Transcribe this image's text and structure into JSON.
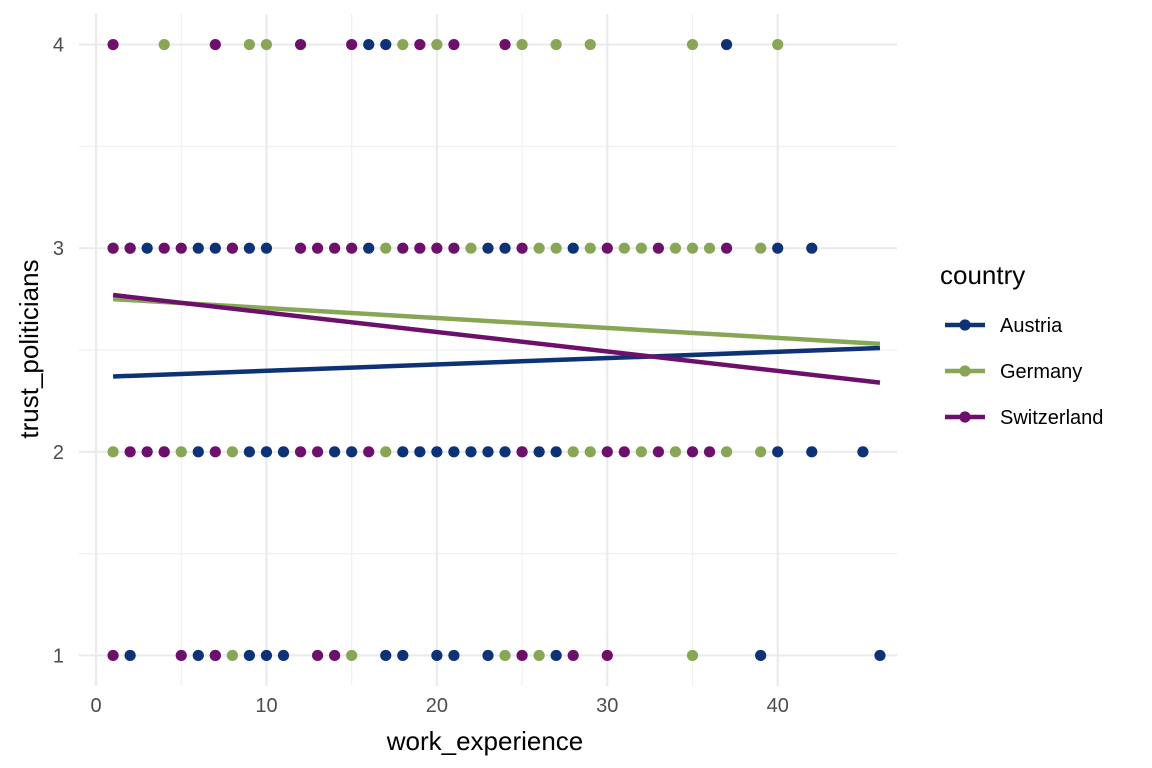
{
  "chart_data": {
    "type": "scatter",
    "xlabel": "work_experience",
    "ylabel": "trust_politicians",
    "xlim": [
      -1,
      47
    ],
    "ylim": [
      0.85,
      4.15
    ],
    "xticks": [
      0,
      10,
      20,
      30,
      40
    ],
    "yticks": [
      1,
      2,
      3,
      4
    ],
    "grid": true,
    "legend": {
      "title": "country",
      "position": "right"
    },
    "series": [
      {
        "name": "Austria",
        "color": "#0d3275",
        "points": [
          [
            16,
            4
          ],
          [
            17,
            4
          ],
          [
            37,
            4
          ],
          [
            2,
            3
          ],
          [
            3,
            3
          ],
          [
            6,
            3
          ],
          [
            7,
            3
          ],
          [
            9,
            3
          ],
          [
            10,
            3
          ],
          [
            16,
            3
          ],
          [
            23,
            3
          ],
          [
            24,
            3
          ],
          [
            28,
            3
          ],
          [
            40,
            3
          ],
          [
            42,
            3
          ],
          [
            6,
            2
          ],
          [
            9,
            2
          ],
          [
            10,
            2
          ],
          [
            11,
            2
          ],
          [
            14,
            2
          ],
          [
            15,
            2
          ],
          [
            18,
            2
          ],
          [
            19,
            2
          ],
          [
            20,
            2
          ],
          [
            21,
            2
          ],
          [
            22,
            2
          ],
          [
            23,
            2
          ],
          [
            24,
            2
          ],
          [
            26,
            2
          ],
          [
            27,
            2
          ],
          [
            40,
            2
          ],
          [
            42,
            2
          ],
          [
            45,
            2
          ],
          [
            2,
            1
          ],
          [
            6,
            1
          ],
          [
            7,
            1
          ],
          [
            9,
            1
          ],
          [
            10,
            1
          ],
          [
            11,
            1
          ],
          [
            17,
            1
          ],
          [
            18,
            1
          ],
          [
            20,
            1
          ],
          [
            21,
            1
          ],
          [
            23,
            1
          ],
          [
            27,
            1
          ],
          [
            39,
            1
          ],
          [
            46,
            1
          ]
        ],
        "trend": [
          [
            1,
            2.37
          ],
          [
            46,
            2.51
          ]
        ]
      },
      {
        "name": "Germany",
        "color": "#88a756",
        "points": [
          [
            4,
            4
          ],
          [
            9,
            4
          ],
          [
            10,
            4
          ],
          [
            18,
            4
          ],
          [
            20,
            4
          ],
          [
            25,
            4
          ],
          [
            27,
            4
          ],
          [
            29,
            4
          ],
          [
            35,
            4
          ],
          [
            40,
            4
          ],
          [
            1,
            3
          ],
          [
            8,
            3
          ],
          [
            17,
            3
          ],
          [
            22,
            3
          ],
          [
            26,
            3
          ],
          [
            27,
            3
          ],
          [
            29,
            3
          ],
          [
            31,
            3
          ],
          [
            32,
            3
          ],
          [
            34,
            3
          ],
          [
            35,
            3
          ],
          [
            36,
            3
          ],
          [
            39,
            3
          ],
          [
            1,
            2
          ],
          [
            4,
            2
          ],
          [
            5,
            2
          ],
          [
            8,
            2
          ],
          [
            17,
            2
          ],
          [
            25,
            2
          ],
          [
            28,
            2
          ],
          [
            29,
            2
          ],
          [
            32,
            2
          ],
          [
            34,
            2
          ],
          [
            37,
            2
          ],
          [
            39,
            2
          ],
          [
            8,
            1
          ],
          [
            15,
            1
          ],
          [
            24,
            1
          ],
          [
            26,
            1
          ],
          [
            35,
            1
          ]
        ],
        "trend": [
          [
            1,
            2.75
          ],
          [
            46,
            2.53
          ]
        ]
      },
      {
        "name": "Switzerland",
        "color": "#6c106c",
        "points": [
          [
            1,
            4
          ],
          [
            7,
            4
          ],
          [
            12,
            4
          ],
          [
            15,
            4
          ],
          [
            19,
            4
          ],
          [
            21,
            4
          ],
          [
            24,
            4
          ],
          [
            1,
            3
          ],
          [
            2,
            3
          ],
          [
            4,
            3
          ],
          [
            5,
            3
          ],
          [
            8,
            3
          ],
          [
            12,
            3
          ],
          [
            13,
            3
          ],
          [
            14,
            3
          ],
          [
            15,
            3
          ],
          [
            18,
            3
          ],
          [
            19,
            3
          ],
          [
            20,
            3
          ],
          [
            21,
            3
          ],
          [
            25,
            3
          ],
          [
            30,
            3
          ],
          [
            33,
            3
          ],
          [
            37,
            3
          ],
          [
            2,
            2
          ],
          [
            3,
            2
          ],
          [
            4,
            2
          ],
          [
            7,
            2
          ],
          [
            12,
            2
          ],
          [
            13,
            2
          ],
          [
            16,
            2
          ],
          [
            25,
            2
          ],
          [
            30,
            2
          ],
          [
            31,
            2
          ],
          [
            33,
            2
          ],
          [
            35,
            2
          ],
          [
            36,
            2
          ],
          [
            1,
            1
          ],
          [
            5,
            1
          ],
          [
            7,
            1
          ],
          [
            13,
            1
          ],
          [
            14,
            1
          ],
          [
            25,
            1
          ],
          [
            28,
            1
          ],
          [
            30,
            1
          ]
        ],
        "trend": [
          [
            1,
            2.77
          ],
          [
            46,
            2.34
          ]
        ]
      }
    ]
  }
}
